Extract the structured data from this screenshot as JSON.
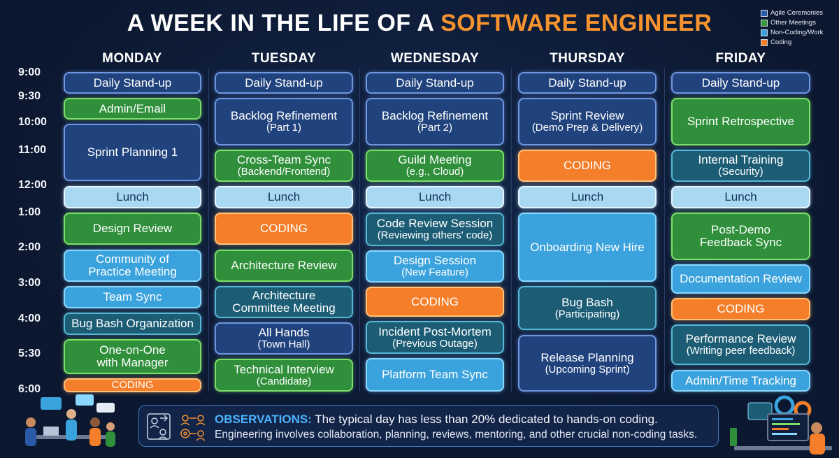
{
  "title": {
    "part1": "A WEEK IN THE LIFE OF A ",
    "accent": "SOFTWARE ENGINEER"
  },
  "legend": [
    {
      "label": "Agile Ceremonies",
      "color": "#21437d"
    },
    {
      "label": "Other Meetings",
      "color": "#2f8f3a"
    },
    {
      "label": "Non-Coding/Work",
      "color": "#3aa2dc"
    },
    {
      "label": "Coding",
      "color": "#f47e2a"
    }
  ],
  "days": [
    "MONDAY",
    "TUESDAY",
    "WEDNESDAY",
    "THURSDAY",
    "FRIDAY"
  ],
  "times": [
    "9:00",
    "9:30",
    "10:00",
    "11:00",
    "12:00",
    "1:00",
    "2:00",
    "3:00",
    "4:00",
    "5:30",
    "6:00"
  ],
  "events": {
    "monday": [
      {
        "l1": "Daily Stand-up",
        "l2": "",
        "kind": "agile"
      },
      {
        "l1": "Admin/Email",
        "l2": "",
        "kind": "meet"
      },
      {
        "l1": "Sprint Planning 1",
        "l2": "",
        "kind": "agile"
      },
      {
        "l1": "Lunch",
        "l2": "",
        "kind": "lunch"
      },
      {
        "l1": "Design Review",
        "l2": "",
        "kind": "meet"
      },
      {
        "l1": "Community of",
        "l2": "Practice Meeting",
        "kind": "non"
      },
      {
        "l1": "Team Sync",
        "l2": "",
        "kind": "non"
      },
      {
        "l1": "Bug Bash Organization",
        "l2": "",
        "kind": "teal"
      },
      {
        "l1": "One-on-One",
        "l2": "with Manager",
        "kind": "meet"
      },
      {
        "l1": "CODING",
        "l2": "",
        "kind": "code"
      }
    ],
    "tuesday": [
      {
        "l1": "Daily Stand-up",
        "l2": "",
        "kind": "agile"
      },
      {
        "l1": "Backlog Refinement",
        "l2": "(Part 1)",
        "kind": "agile"
      },
      {
        "l1": "Cross-Team Sync",
        "l2": "(Backend/Frontend)",
        "kind": "meet"
      },
      {
        "l1": "Lunch",
        "l2": "",
        "kind": "lunch"
      },
      {
        "l1": "CODING",
        "l2": "",
        "kind": "code"
      },
      {
        "l1": "Architecture Review",
        "l2": "",
        "kind": "meet"
      },
      {
        "l1": "Architecture",
        "l2": "Committee Meeting",
        "kind": "teal"
      },
      {
        "l1": "All Hands",
        "l2": "(Town Hall)",
        "kind": "agile"
      },
      {
        "l1": "Technical Interview",
        "l2": "(Candidate)",
        "kind": "meet"
      }
    ],
    "wednesday": [
      {
        "l1": "Daily Stand-up",
        "l2": "",
        "kind": "agile"
      },
      {
        "l1": "Backlog Refinement",
        "l2": "(Part 2)",
        "kind": "agile"
      },
      {
        "l1": "Guild Meeting",
        "l2": "(e.g., Cloud)",
        "kind": "meet"
      },
      {
        "l1": "Lunch",
        "l2": "",
        "kind": "lunch"
      },
      {
        "l1": "Code Review Session",
        "l2": "(Reviewing others' code)",
        "kind": "teal"
      },
      {
        "l1": "Design Session",
        "l2": "(New Feature)",
        "kind": "non"
      },
      {
        "l1": "CODING",
        "l2": "",
        "kind": "code"
      },
      {
        "l1": "Incident Post-Mortem",
        "l2": "(Previous Outage)",
        "kind": "teal"
      },
      {
        "l1": "Platform Team Sync",
        "l2": "",
        "kind": "non"
      }
    ],
    "thursday": [
      {
        "l1": "Daily Stand-up",
        "l2": "",
        "kind": "agile"
      },
      {
        "l1": "Sprint Review",
        "l2": "(Demo Prep & Delivery)",
        "kind": "agile"
      },
      {
        "l1": "CODING",
        "l2": "",
        "kind": "code"
      },
      {
        "l1": "Lunch",
        "l2": "",
        "kind": "lunch"
      },
      {
        "l1": "Onboarding New Hire",
        "l2": "",
        "kind": "non"
      },
      {
        "l1": "Bug Bash",
        "l2": "(Participating)",
        "kind": "teal"
      },
      {
        "l1": "Release Planning",
        "l2": "(Upcoming Sprint)",
        "kind": "agile"
      }
    ],
    "friday": [
      {
        "l1": "Daily Stand-up",
        "l2": "",
        "kind": "agile"
      },
      {
        "l1": "Sprint Retrospective",
        "l2": "",
        "kind": "meet"
      },
      {
        "l1": "Internal Training",
        "l2": "(Security)",
        "kind": "teal"
      },
      {
        "l1": "Lunch",
        "l2": "",
        "kind": "lunch"
      },
      {
        "l1": "Post-Demo",
        "l2": "Feedback Sync",
        "kind": "meet"
      },
      {
        "l1": "Documentation Review",
        "l2": "",
        "kind": "non"
      },
      {
        "l1": "CODING",
        "l2": "",
        "kind": "code"
      },
      {
        "l1": "Performance Review",
        "l2": "(Writing peer feedback)",
        "kind": "teal"
      },
      {
        "l1": "Admin/Time Tracking",
        "l2": "",
        "kind": "non"
      }
    ]
  },
  "observations": {
    "heading": "OBSERVATIONS:",
    "line1": "The typical day has less than 20% dedicated to hands-on coding.",
    "line2": "Engineering involves collaboration, planning, reviews, mentoring, and other crucial non-coding tasks."
  }
}
